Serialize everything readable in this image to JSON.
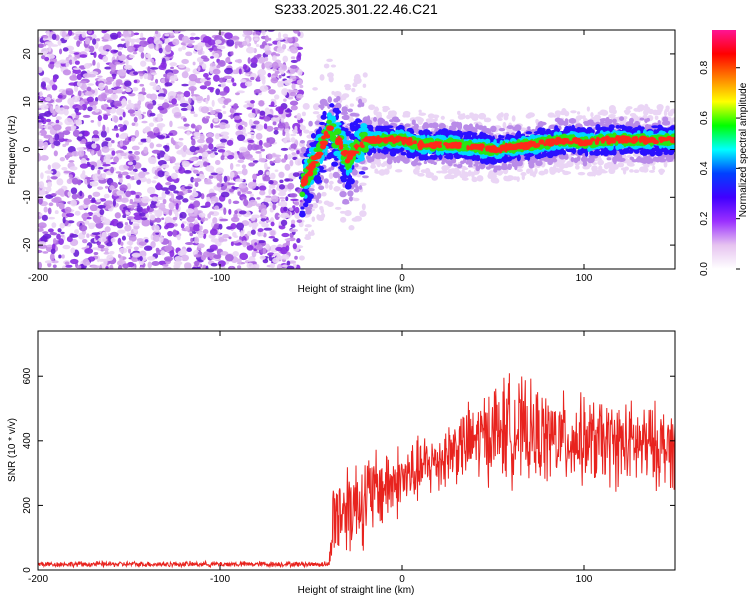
{
  "title": "S233.2025.301.22.46.C21",
  "colors": {
    "snr_line": "#e8231e",
    "scatter_speckle": "#8a2be2",
    "colormap": [
      "#ffffff",
      "#e6c3f0",
      "#9b30ff",
      "#4000ff",
      "#0040ff",
      "#00ffff",
      "#00ff00",
      "#ffff00",
      "#ff8000",
      "#ff0000",
      "#ff1493"
    ]
  },
  "chart_data": [
    {
      "type": "heatmap",
      "xlabel": "Height of straight line (km)",
      "ylabel": "Frequency (Hz)",
      "xlim": [
        -200,
        150
      ],
      "ylim": [
        -25,
        25
      ],
      "xticks": [
        -200,
        -100,
        0,
        100
      ],
      "yticks": [
        -20,
        -10,
        0,
        10,
        20
      ],
      "colorbar": {
        "label": "Normalized spectral amplitude",
        "range": [
          0,
          0.95
        ],
        "ticks": [
          "0.0",
          "0.2",
          "0.4",
          "0.6",
          "0.8"
        ]
      },
      "description_features": {
        "noise_region_x": [
          -200,
          -55
        ],
        "signal_start_x": -55,
        "ridge_frequency_hz": [
          {
            "x": -55,
            "y": -8
          },
          {
            "x": -50,
            "y": -4
          },
          {
            "x": -45,
            "y": 0
          },
          {
            "x": -40,
            "y": 4
          },
          {
            "x": -35,
            "y": 2
          },
          {
            "x": -30,
            "y": -2
          },
          {
            "x": -25,
            "y": 0
          },
          {
            "x": -20,
            "y": 2
          },
          {
            "x": -10,
            "y": 2
          },
          {
            "x": 0,
            "y": 2
          },
          {
            "x": 10,
            "y": 1
          },
          {
            "x": 20,
            "y": 1
          },
          {
            "x": 30,
            "y": 1
          },
          {
            "x": 40,
            "y": 0.5
          },
          {
            "x": 50,
            "y": 0
          },
          {
            "x": 60,
            "y": 0.5
          },
          {
            "x": 70,
            "y": 1
          },
          {
            "x": 80,
            "y": 1.5
          },
          {
            "x": 90,
            "y": 2
          },
          {
            "x": 100,
            "y": 1.5
          },
          {
            "x": 110,
            "y": 2
          },
          {
            "x": 120,
            "y": 2
          },
          {
            "x": 130,
            "y": 2
          },
          {
            "x": 140,
            "y": 2
          },
          {
            "x": 150,
            "y": 2
          }
        ]
      }
    },
    {
      "type": "line",
      "xlabel": "Height of straight line (km)",
      "ylabel": "SNR (10 * v/v)",
      "xlim": [
        -200,
        150
      ],
      "ylim": [
        0,
        740
      ],
      "xticks": [
        -200,
        -100,
        0,
        100
      ],
      "yticks": [
        0,
        200,
        400,
        600
      ],
      "series_envelope": [
        {
          "x": -200,
          "mean": 18,
          "amp": 10
        },
        {
          "x": -40,
          "mean": 18,
          "amp": 10
        },
        {
          "x": -38,
          "mean": 160,
          "amp": 160
        },
        {
          "x": -30,
          "mean": 200,
          "amp": 180
        },
        {
          "x": -20,
          "mean": 220,
          "amp": 170
        },
        {
          "x": -10,
          "mean": 260,
          "amp": 150
        },
        {
          "x": 0,
          "mean": 280,
          "amp": 130
        },
        {
          "x": 10,
          "mean": 310,
          "amp": 120
        },
        {
          "x": 20,
          "mean": 340,
          "amp": 120
        },
        {
          "x": 30,
          "mean": 380,
          "amp": 130
        },
        {
          "x": 40,
          "mean": 400,
          "amp": 150
        },
        {
          "x": 50,
          "mean": 430,
          "amp": 180
        },
        {
          "x": 60,
          "mean": 440,
          "amp": 200
        },
        {
          "x": 70,
          "mean": 420,
          "amp": 180
        },
        {
          "x": 80,
          "mean": 410,
          "amp": 170
        },
        {
          "x": 100,
          "mean": 400,
          "amp": 160
        },
        {
          "x": 120,
          "mean": 390,
          "amp": 160
        },
        {
          "x": 150,
          "mean": 380,
          "amp": 150
        }
      ]
    }
  ]
}
